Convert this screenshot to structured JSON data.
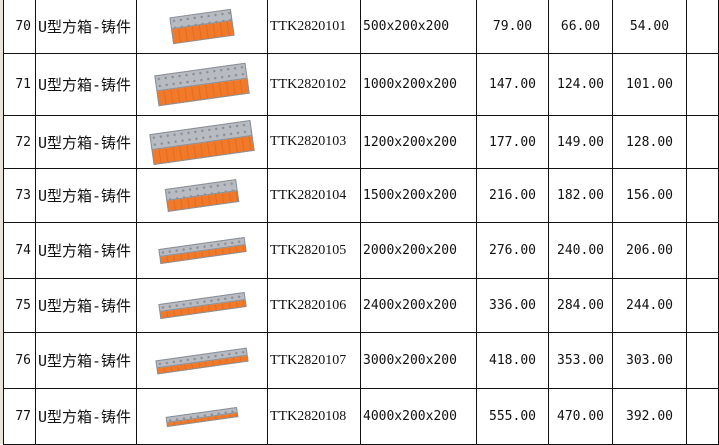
{
  "rows": [
    {
      "no": "70",
      "name": "U型方箱-铸件",
      "code": "TTK2820101",
      "size": "500x200x200",
      "p1": "79.00",
      "p2": "66.00",
      "p3": "54.00",
      "image": "u-box-casting"
    },
    {
      "no": "71",
      "name": "U型方箱-铸件",
      "code": "TTK2820102",
      "size": "1000x200x200",
      "p1": "147.00",
      "p2": "124.00",
      "p3": "101.00",
      "image": "u-box-casting"
    },
    {
      "no": "72",
      "name": "U型方箱-铸件",
      "code": "TTK2820103",
      "size": "1200x200x200",
      "p1": "177.00",
      "p2": "149.00",
      "p3": "128.00",
      "image": "u-box-casting"
    },
    {
      "no": "73",
      "name": "U型方箱-铸件",
      "code": "TTK2820104",
      "size": "1500x200x200",
      "p1": "216.00",
      "p2": "182.00",
      "p3": "156.00",
      "image": "u-box-casting"
    },
    {
      "no": "74",
      "name": "U型方箱-铸件",
      "code": "TTK2820105",
      "size": "2000x200x200",
      "p1": "276.00",
      "p2": "240.00",
      "p3": "206.00",
      "image": "u-box-casting"
    },
    {
      "no": "75",
      "name": "U型方箱-铸件",
      "code": "TTK2820106",
      "size": "2400x200x200",
      "p1": "336.00",
      "p2": "284.00",
      "p3": "244.00",
      "image": "u-box-casting"
    },
    {
      "no": "76",
      "name": "U型方箱-铸件",
      "code": "TTK2820107",
      "size": "3000x200x200",
      "p1": "418.00",
      "p2": "353.00",
      "p3": "303.00",
      "image": "u-box-casting"
    },
    {
      "no": "77",
      "name": "U型方箱-铸件",
      "code": "TTK2820108",
      "size": "4000x200x200",
      "p1": "555.00",
      "p2": "470.00",
      "p3": "392.00",
      "image": "u-box-casting"
    }
  ],
  "colors": {
    "box_top": "#b8bcc2",
    "box_front": "#f07a2a"
  }
}
